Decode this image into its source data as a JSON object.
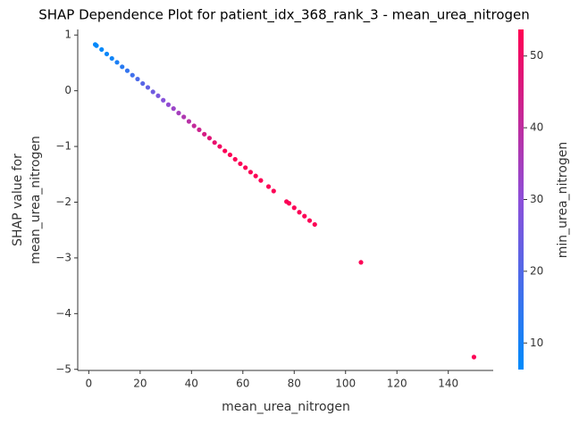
{
  "chart_data": {
    "type": "scatter",
    "title": "SHAP Dependence Plot for patient_idx_368_rank_3 - mean_urea_nitrogen",
    "xlabel": "mean_urea_nitrogen",
    "ylabel": [
      "SHAP value for",
      "mean_urea_nitrogen"
    ],
    "colorbar_label": "min_urea_nitrogen",
    "colormap": [
      "#008bfb",
      "#8d4fd9",
      "#ff0052"
    ],
    "xlim": [
      -4.3,
      157.5
    ],
    "ylim": [
      -5.02,
      1.1
    ],
    "clim": [
      6.3,
      53.7
    ],
    "xticks": [
      0,
      20,
      40,
      60,
      80,
      100,
      120,
      140
    ],
    "yticks": [
      1,
      0,
      {
        "value": -1,
        "label": "−1"
      },
      {
        "value": -2,
        "label": "−2"
      },
      {
        "value": -3,
        "label": "−3"
      },
      {
        "value": -4,
        "label": "−4"
      },
      {
        "value": -5,
        "label": "−5"
      }
    ],
    "cticks": [
      10,
      20,
      30,
      40,
      50
    ],
    "x": [
      2.5,
      3,
      5,
      7,
      9,
      11,
      13,
      15,
      17,
      19,
      21,
      23,
      25,
      27,
      29,
      31,
      33,
      35,
      37,
      39,
      41,
      43,
      45,
      47,
      49,
      51,
      53,
      55,
      57,
      59,
      61,
      63,
      65,
      67,
      70,
      72,
      77,
      78,
      80,
      82,
      84,
      86,
      88,
      106,
      150
    ],
    "y": [
      0.83,
      0.81,
      0.74,
      0.66,
      0.58,
      0.51,
      0.43,
      0.36,
      0.28,
      0.21,
      0.13,
      0.06,
      -0.02,
      -0.09,
      -0.17,
      -0.25,
      -0.32,
      -0.4,
      -0.47,
      -0.55,
      -0.63,
      -0.7,
      -0.78,
      -0.85,
      -0.93,
      -1.0,
      -1.08,
      -1.15,
      -1.23,
      -1.31,
      -1.38,
      -1.46,
      -1.53,
      -1.61,
      -1.72,
      -1.8,
      -1.99,
      -2.02,
      -2.1,
      -2.18,
      -2.25,
      -2.33,
      -2.4,
      -3.08,
      -4.78
    ],
    "c": [
      7,
      7,
      7,
      8,
      9,
      11,
      13,
      15,
      17,
      19,
      21,
      23,
      25,
      27,
      29,
      31,
      33,
      35,
      37,
      39,
      41,
      43,
      45,
      47,
      49,
      51,
      53,
      53,
      53,
      53,
      53,
      53,
      53,
      53,
      53,
      53,
      53,
      53,
      53,
      53,
      53,
      53,
      53,
      53,
      53
    ]
  }
}
